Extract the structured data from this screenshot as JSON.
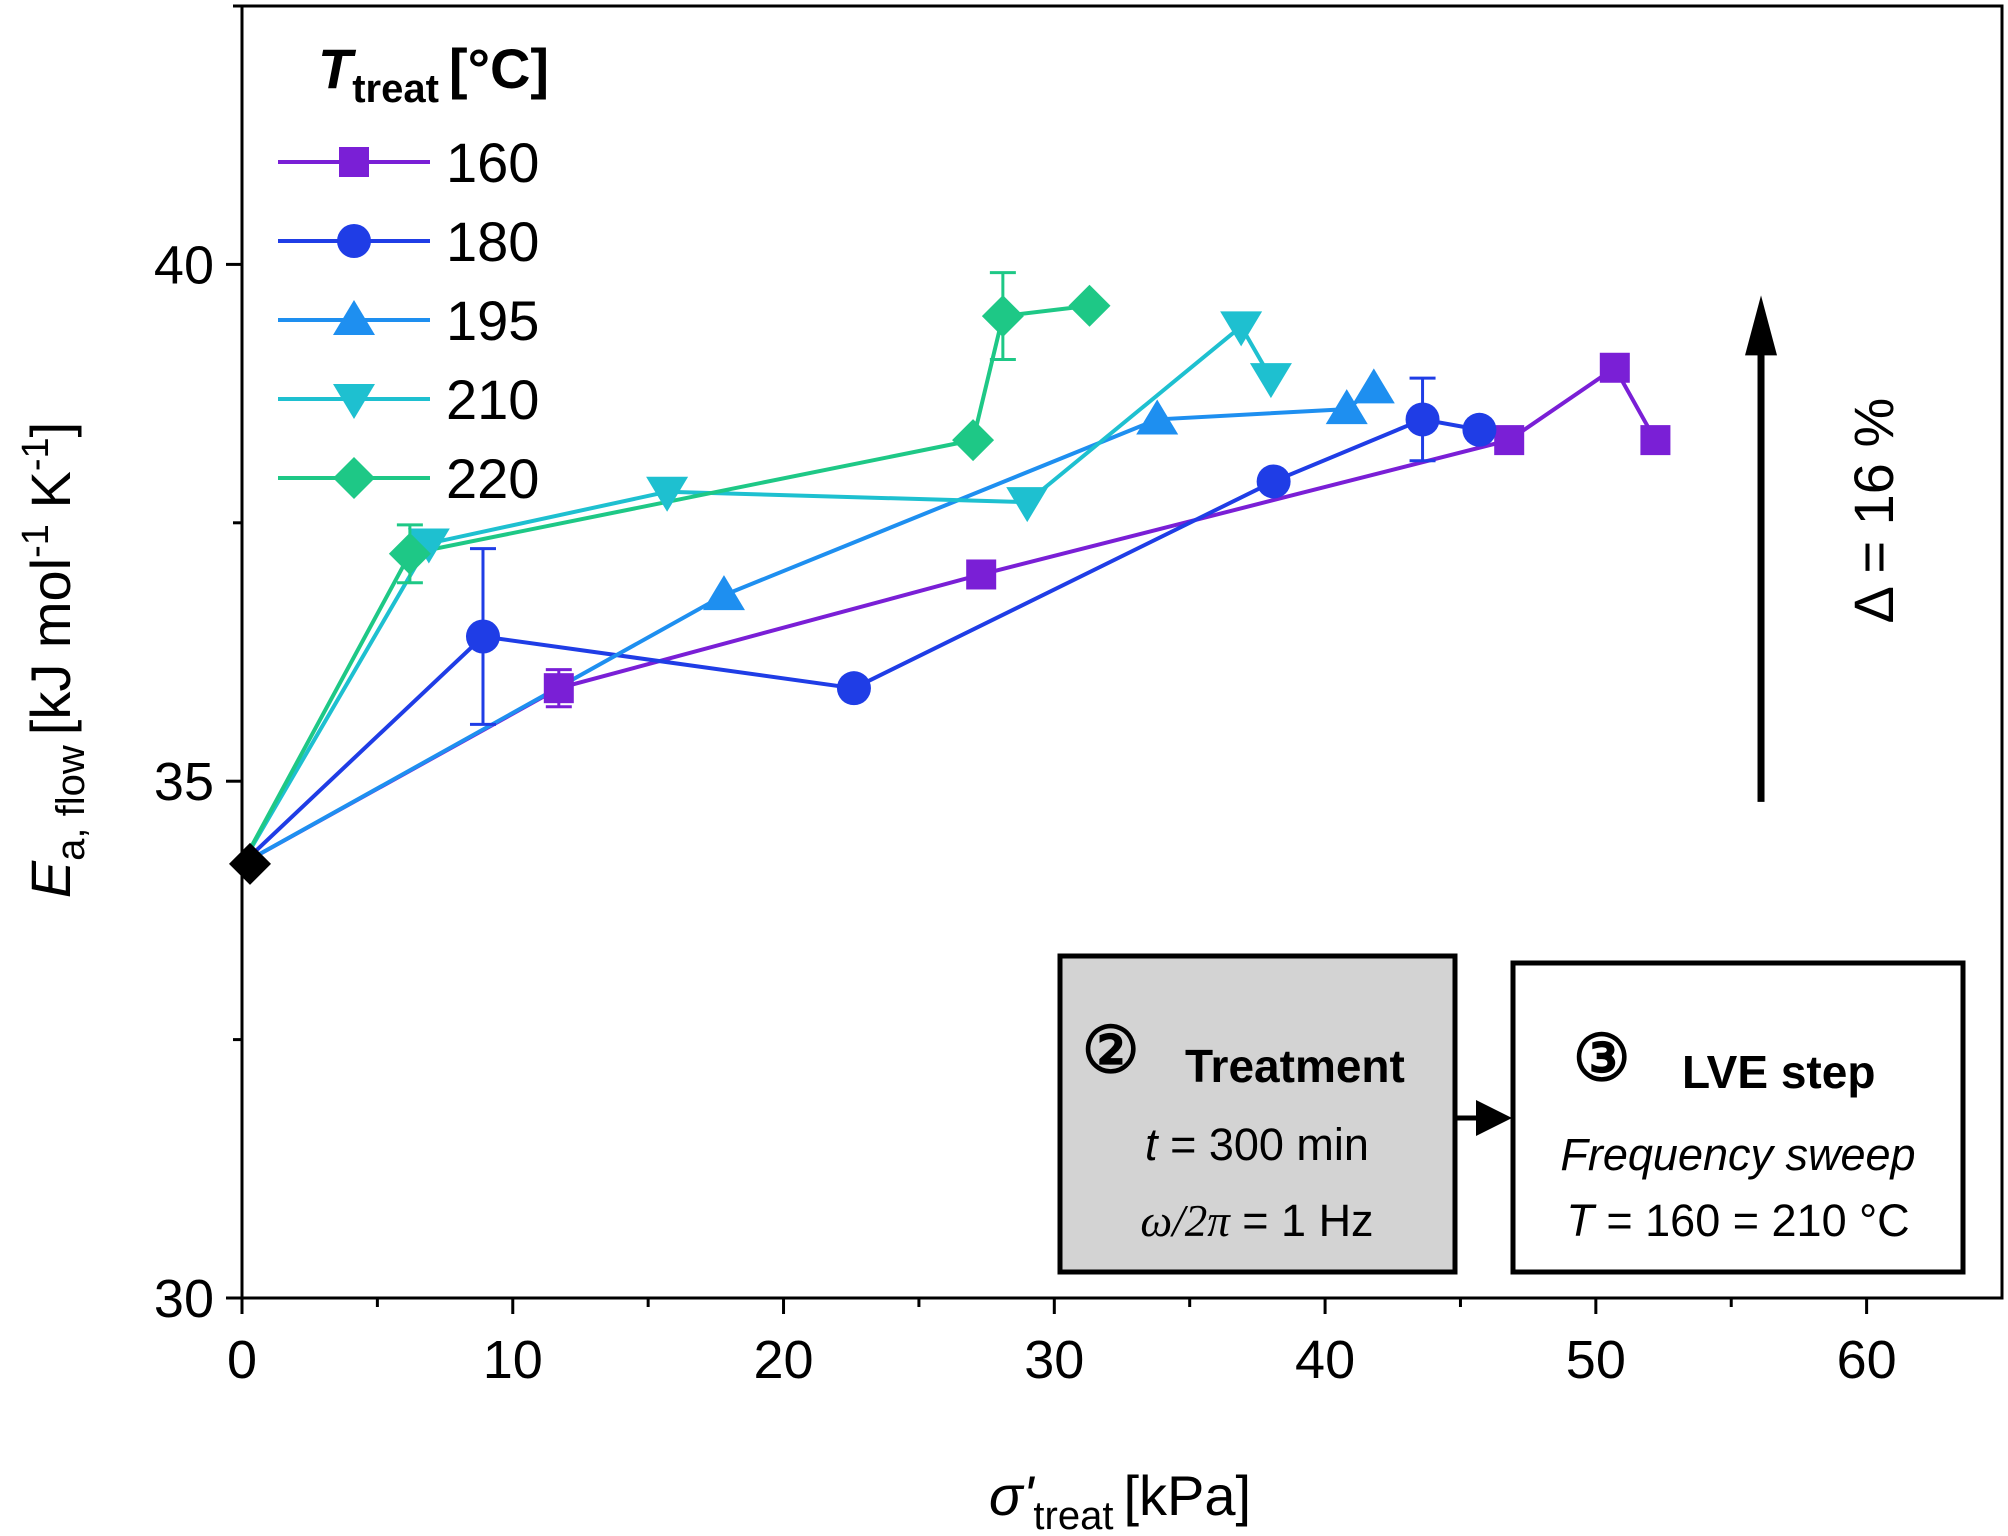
{
  "chart_data": {
    "type": "line",
    "xlabel": {
      "main": "σ'",
      "sub": "treat",
      "unit": "[kPa]"
    },
    "ylabel": {
      "main": "E",
      "sub": "a, flow",
      "unit_pre": "[kJ mol",
      "sup1": "-1",
      "unit_mid": " K",
      "sup2": "-1",
      "unit_post": "]"
    },
    "xlim": [
      0,
      65
    ],
    "ylim": [
      30,
      42.5
    ],
    "x_ticks": [
      0,
      10,
      20,
      30,
      40,
      50,
      60
    ],
    "x_tick_labels": [
      "0",
      "10",
      "20",
      "30",
      "40",
      "50",
      "60"
    ],
    "y_ticks": [
      30,
      35,
      40
    ],
    "y_tick_labels": [
      "30",
      "35",
      "40"
    ],
    "legend": {
      "title_main": "T",
      "title_sub": "treat",
      "title_unit": "[°C]",
      "position": "top-left"
    },
    "series": [
      {
        "name": "160",
        "color": "#7a1fd6",
        "marker": "square",
        "x": [
          0,
          11.7,
          27.3,
          46.8,
          50.7,
          52.2
        ],
        "y": [
          34.2,
          35.9,
          37.0,
          38.3,
          39.0,
          38.3
        ],
        "err": [
          0,
          0.18,
          0,
          0,
          0.1,
          0
        ]
      },
      {
        "name": "180",
        "color": "#1f3de6",
        "marker": "circle",
        "x": [
          0,
          8.9,
          22.6,
          38.1,
          43.6,
          45.7
        ],
        "y": [
          34.2,
          36.4,
          35.9,
          37.9,
          38.5,
          38.4
        ],
        "err": [
          0,
          0.85,
          0,
          0,
          0.4,
          0
        ]
      },
      {
        "name": "195",
        "color": "#1e8ff0",
        "marker": "triangle-up",
        "x": [
          0,
          17.8,
          33.8,
          40.8,
          41.8
        ],
        "y": [
          34.2,
          36.8,
          38.5,
          38.6,
          38.8
        ],
        "err": [
          0,
          0,
          0,
          0,
          0
        ]
      },
      {
        "name": "210",
        "color": "#1ec0d0",
        "marker": "triangle-down",
        "x": [
          0,
          6.9,
          15.7,
          29.0,
          36.9,
          38.0
        ],
        "y": [
          34.2,
          37.3,
          37.8,
          37.7,
          39.4,
          38.9
        ],
        "err": [
          0,
          0,
          0,
          0,
          0,
          0
        ]
      },
      {
        "name": "220",
        "color": "#1ec886",
        "marker": "diamond",
        "x": [
          0,
          6.2,
          27.0,
          28.1,
          31.3
        ],
        "y": [
          34.2,
          37.2,
          38.3,
          39.5,
          39.6
        ],
        "err": [
          0,
          0.28,
          0,
          0.42,
          0
        ]
      }
    ],
    "annotation_arrow": {
      "label": "Δ = 16 %",
      "x": 56.1,
      "y_from": 34.8,
      "y_to": 39.7
    },
    "process_boxes": [
      {
        "symbol": "②",
        "title": "Treatment",
        "line1_var": "t",
        "line1_rest": " = 300 min",
        "line2_var": "ω/2π",
        "line2_rest": " = 1 Hz",
        "fill": "#d3d3d3"
      },
      {
        "symbol": "③",
        "title": "LVE step",
        "line1": "Frequency sweep",
        "line2_var": "T",
        "line2_rest": " = 160 = 210 °C",
        "fill": "#ffffff"
      }
    ]
  }
}
